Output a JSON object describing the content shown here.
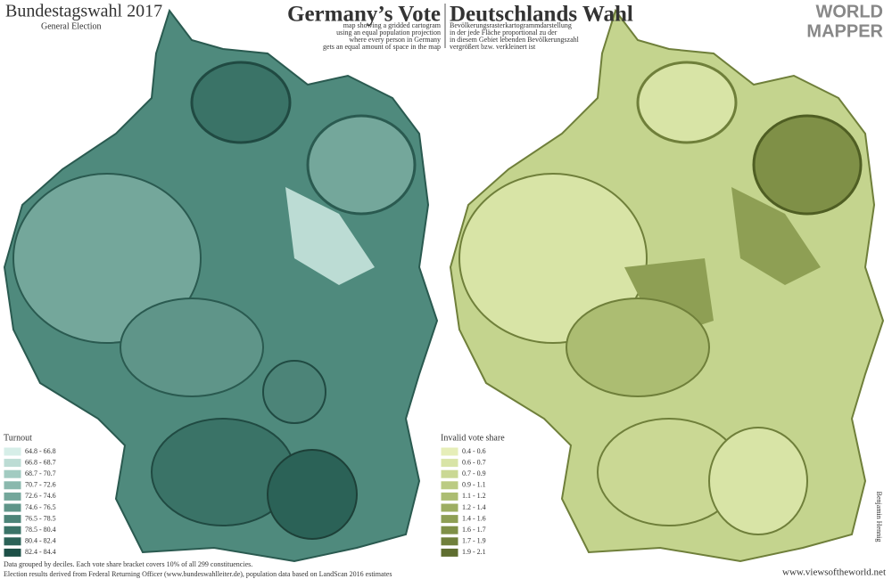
{
  "header": {
    "title_left": "Bundestagswahl 2017",
    "subtitle_left": "General Election",
    "title_en": "Germany’s Vote",
    "desc_en": [
      "map showing a gridded cartogram",
      "using an equal population projection",
      "where every person in Germany",
      "gets an equal amount of space in the map"
    ],
    "title_de": "Deutschlands Wahl",
    "desc_de": [
      "Bevölkerungsrasterkartogrammdarstellung",
      "in der jede Fläche proportional zu der",
      "in diesem Gebiet lebenden Bevölkerungszahl",
      "vergrößert bzw. verkleinert ist"
    ],
    "logo": [
      "WORLD",
      "MAPPER"
    ]
  },
  "legend_left": {
    "title": "Turnout",
    "items": [
      {
        "label": "64.8 - 66.8",
        "color": "#d6eee8"
      },
      {
        "label": "66.8 - 68.7",
        "color": "#bcdcd4"
      },
      {
        "label": "68.7 - 70.7",
        "color": "#a2cbc1"
      },
      {
        "label": "70.7 - 72.6",
        "color": "#8ab8ad"
      },
      {
        "label": "72.6 - 74.6",
        "color": "#74a79b"
      },
      {
        "label": "74.6 - 76.5",
        "color": "#5f9589"
      },
      {
        "label": "76.5 - 78.5",
        "color": "#4c8478"
      },
      {
        "label": "78.5 - 80.4",
        "color": "#3a7367"
      },
      {
        "label": "80.4 - 82.4",
        "color": "#2b6257"
      },
      {
        "label": "82.4 - 84.4",
        "color": "#1d5047"
      }
    ]
  },
  "legend_right": {
    "title": "Invalid vote share",
    "items": [
      {
        "label": "0.4 - 0.6",
        "color": "#e6eeb8"
      },
      {
        "label": "0.6 - 0.7",
        "color": "#d8e4a6"
      },
      {
        "label": "0.7 - 0.9",
        "color": "#cad894"
      },
      {
        "label": "0.9 - 1.1",
        "color": "#bbcb83"
      },
      {
        "label": "1.1 - 1.2",
        "color": "#acbd72"
      },
      {
        "label": "1.2 - 1.4",
        "color": "#9dae62"
      },
      {
        "label": "1.4 - 1.6",
        "color": "#8e9f54"
      },
      {
        "label": "1.6 - 1.7",
        "color": "#7f9047"
      },
      {
        "label": "1.7 - 1.9",
        "color": "#70803b"
      },
      {
        "label": "1.9 - 2.1",
        "color": "#5f6e30"
      }
    ]
  },
  "footer": {
    "notes": [
      "Data grouped by deciles. Each vote share bracket covers 10% of all 299 constituencies.",
      "Election results derived from Federal Returning Officer (www.bundeswahlleiter.de), population data based on LandScan 2016 estimates"
    ],
    "credit": "Benjamin Hennig",
    "url": "www.viewsoftheworld.net"
  }
}
